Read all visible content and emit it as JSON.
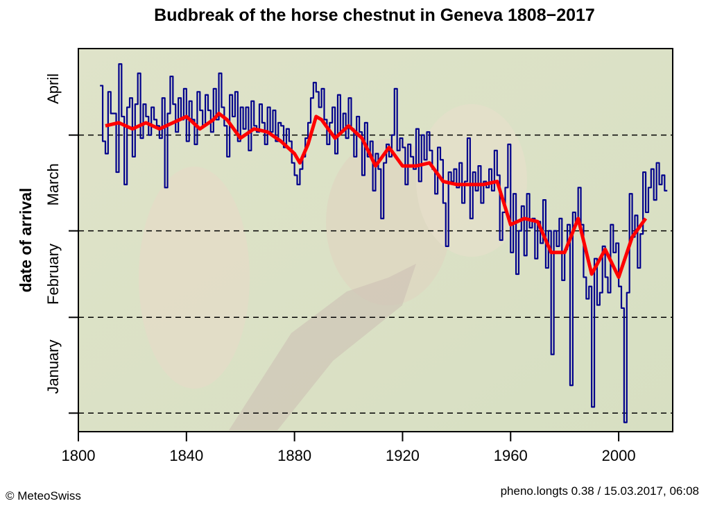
{
  "chart_data": {
    "type": "line",
    "title": "Budbreak of the horse chestnut in Geneva 1808−2017",
    "y_label": "date of arrival",
    "credit": "© MeteoSwiss",
    "footer": "pheno.longts 0.38 / 15.03.2017, 06:08",
    "xlim": [
      1800,
      2020
    ],
    "ylim": [
      -5,
      119
    ],
    "xticks": [
      1800,
      1840,
      1880,
      1920,
      1960,
      2000
    ],
    "yticks": [
      {
        "value": 16,
        "label": "January"
      },
      {
        "value": 46,
        "label": "February"
      },
      {
        "value": 75,
        "label": "March"
      },
      {
        "value": 106,
        "label": "April"
      }
    ],
    "hlines": [
      1,
      32,
      60,
      91
    ],
    "series": [
      {
        "color": "#00008b",
        "step": true,
        "x": [
          1808,
          1809,
          1810,
          1811,
          1812,
          1813,
          1814,
          1815,
          1816,
          1817,
          1818,
          1819,
          1820,
          1821,
          1822,
          1823,
          1824,
          1825,
          1826,
          1827,
          1828,
          1829,
          1830,
          1831,
          1832,
          1833,
          1834,
          1835,
          1836,
          1837,
          1838,
          1839,
          1840,
          1841,
          1842,
          1843,
          1844,
          1845,
          1846,
          1847,
          1848,
          1849,
          1850,
          1851,
          1852,
          1853,
          1854,
          1855,
          1856,
          1857,
          1858,
          1859,
          1860,
          1861,
          1862,
          1863,
          1864,
          1865,
          1866,
          1867,
          1868,
          1869,
          1870,
          1871,
          1872,
          1873,
          1874,
          1875,
          1876,
          1877,
          1878,
          1879,
          1880,
          1881,
          1882,
          1883,
          1884,
          1885,
          1886,
          1887,
          1888,
          1889,
          1890,
          1891,
          1892,
          1893,
          1894,
          1895,
          1896,
          1897,
          1898,
          1899,
          1900,
          1901,
          1902,
          1903,
          1904,
          1905,
          1906,
          1907,
          1908,
          1909,
          1910,
          1911,
          1912,
          1913,
          1914,
          1915,
          1916,
          1917,
          1918,
          1919,
          1920,
          1921,
          1922,
          1923,
          1924,
          1925,
          1926,
          1927,
          1928,
          1929,
          1930,
          1931,
          1932,
          1933,
          1934,
          1935,
          1936,
          1937,
          1938,
          1939,
          1940,
          1941,
          1942,
          1943,
          1944,
          1945,
          1946,
          1947,
          1948,
          1949,
          1950,
          1951,
          1952,
          1953,
          1954,
          1955,
          1956,
          1957,
          1958,
          1959,
          1960,
          1961,
          1962,
          1963,
          1964,
          1965,
          1966,
          1967,
          1968,
          1969,
          1970,
          1971,
          1972,
          1973,
          1974,
          1975,
          1976,
          1977,
          1978,
          1979,
          1980,
          1981,
          1982,
          1983,
          1984,
          1985,
          1986,
          1987,
          1988,
          1989,
          1990,
          1991,
          1992,
          1993,
          1994,
          1995,
          1996,
          1997,
          1998,
          1999,
          2000,
          2001,
          2002,
          2003,
          2004,
          2005,
          2006,
          2007,
          2008,
          2009,
          2010,
          2011,
          2012,
          2013,
          2014,
          2015,
          2016,
          2017
        ],
        "values": [
          107,
          89,
          85,
          105,
          98,
          98,
          79,
          114,
          97,
          75,
          100,
          103,
          84,
          101,
          111,
          90,
          101,
          97,
          91,
          100,
          96,
          94,
          90,
          103,
          74,
          98,
          110,
          101,
          92,
          103,
          96,
          106,
          89,
          102,
          96,
          88,
          105,
          99,
          94,
          104,
          99,
          92,
          106,
          96,
          111,
          100,
          94,
          84,
          104,
          97,
          105,
          89,
          100,
          93,
          100,
          86,
          102,
          94,
          92,
          101,
          95,
          88,
          100,
          92,
          99,
          89,
          95,
          94,
          87,
          93,
          89,
          82,
          78,
          75,
          80,
          84,
          90,
          95,
          103,
          108,
          105,
          100,
          106,
          96,
          88,
          95,
          100,
          85,
          104,
          92,
          98,
          90,
          103,
          93,
          84,
          97,
          92,
          78,
          95,
          84,
          89,
          73,
          85,
          80,
          64,
          82,
          88,
          84,
          91,
          106,
          86,
          90,
          87,
          75,
          88,
          84,
          80,
          93,
          76,
          91,
          83,
          92,
          86,
          80,
          72,
          87,
          83,
          69,
          55,
          79,
          76,
          80,
          74,
          82,
          69,
          76,
          90,
          64,
          79,
          73,
          81,
          69,
          76,
          74,
          80,
          73,
          86,
          78,
          57,
          66,
          74,
          88,
          53,
          72,
          46,
          60,
          68,
          52,
          72,
          61,
          64,
          51,
          63,
          56,
          70,
          48,
          60,
          20,
          60,
          55,
          64,
          44,
          54,
          62,
          10,
          66,
          63,
          74,
          62,
          45,
          38,
          42,
          3,
          51,
          36,
          40,
          55,
          45,
          40,
          62,
          53,
          56,
          42,
          35,
          -2,
          40,
          72,
          58,
          65,
          48,
          59,
          79,
          66,
          74,
          80,
          70,
          82,
          75,
          78,
          73
        ]
      },
      {
        "color": "#ff0000",
        "x": [
          1810,
          1815,
          1820,
          1825,
          1830,
          1835,
          1840,
          1845,
          1850,
          1852,
          1855,
          1860,
          1865,
          1870,
          1875,
          1880,
          1882,
          1885,
          1888,
          1890,
          1895,
          1900,
          1905,
          1910,
          1915,
          1920,
          1925,
          1930,
          1935,
          1940,
          1945,
          1950,
          1955,
          1960,
          1965,
          1970,
          1975,
          1980,
          1985,
          1990,
          1995,
          2000,
          2005,
          2010
        ],
        "values": [
          94,
          95,
          93,
          95,
          93,
          95,
          97,
          93,
          96,
          98,
          96,
          90,
          93,
          92,
          89,
          85,
          82,
          88,
          97,
          96,
          90,
          94,
          90,
          81,
          87,
          81,
          81,
          82,
          76,
          75,
          75,
          75,
          76,
          62,
          64,
          63,
          53,
          53,
          64,
          46,
          54,
          45,
          58,
          64
        ]
      }
    ]
  }
}
